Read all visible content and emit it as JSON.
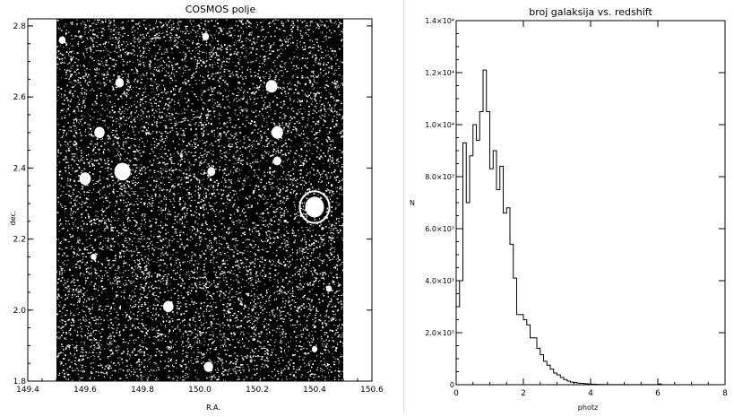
{
  "chart_data": [
    {
      "type": "scatter",
      "title": "COSMOS polje",
      "xlabel": "R.A.",
      "ylabel": "dec.",
      "xlim": [
        149.4,
        150.6
      ],
      "ylim": [
        1.8,
        2.82
      ],
      "xticks": [
        "149.4",
        "149.6",
        "149.8",
        "150.0",
        "150.2",
        "150.4",
        "150.6"
      ],
      "yticks": [
        "1.8",
        "2.0",
        "2.2",
        "2.4",
        "2.6",
        "2.8"
      ],
      "field_ra": [
        149.5,
        150.5
      ],
      "field_dec": [
        1.8,
        2.82
      ],
      "grid": false,
      "masked_regions": [
        {
          "ra": 149.52,
          "dec": 2.76,
          "r": 0.012
        },
        {
          "ra": 149.72,
          "dec": 2.64,
          "r": 0.015
        },
        {
          "ra": 149.65,
          "dec": 2.5,
          "r": 0.018
        },
        {
          "ra": 149.73,
          "dec": 2.39,
          "r": 0.028
        },
        {
          "ra": 149.6,
          "dec": 2.37,
          "r": 0.02
        },
        {
          "ra": 150.04,
          "dec": 2.39,
          "r": 0.014
        },
        {
          "ra": 150.02,
          "dec": 2.77,
          "r": 0.012
        },
        {
          "ra": 150.25,
          "dec": 2.63,
          "r": 0.02
        },
        {
          "ra": 150.27,
          "dec": 2.5,
          "r": 0.02
        },
        {
          "ra": 150.27,
          "dec": 2.42,
          "r": 0.014
        },
        {
          "ra": 150.4,
          "dec": 2.29,
          "r": 0.033
        },
        {
          "ra": 149.89,
          "dec": 2.01,
          "r": 0.018
        },
        {
          "ra": 150.03,
          "dec": 1.84,
          "r": 0.016
        },
        {
          "ra": 149.63,
          "dec": 2.15,
          "r": 0.01
        },
        {
          "ra": 150.4,
          "dec": 1.89,
          "r": 0.01
        },
        {
          "ra": 150.45,
          "dec": 2.06,
          "r": 0.01
        }
      ]
    },
    {
      "type": "line",
      "title": "broj galaksija vs. redshift",
      "xlabel": "photz",
      "ylabel": "N",
      "xlim": [
        0,
        8
      ],
      "ylim": [
        0,
        14000
      ],
      "xticks": [
        "0",
        "2",
        "4",
        "6",
        "8"
      ],
      "yticks": [
        "0",
        "2.0×10³",
        "4.0×10³",
        "6.0×10³",
        "8.0×10³",
        "1.0×10⁴",
        "1.2×10⁴",
        "1.4×10⁴"
      ],
      "grid": false,
      "series": [
        {
          "step": "histogram",
          "bin_width": 0.1,
          "x": [
            0.0,
            0.1,
            0.2,
            0.3,
            0.4,
            0.5,
            0.6,
            0.7,
            0.8,
            0.9,
            1.0,
            1.1,
            1.2,
            1.3,
            1.4,
            1.5,
            1.6,
            1.7,
            1.8,
            1.9,
            2.0,
            2.1,
            2.2,
            2.3,
            2.4,
            2.5,
            2.6,
            2.7,
            2.8,
            2.9,
            3.0,
            3.1,
            3.2,
            3.3,
            3.4,
            3.5,
            3.6,
            3.7,
            3.8,
            3.9,
            4.0,
            4.1,
            4.2,
            4.3,
            4.4,
            4.5,
            4.6,
            4.7,
            4.8,
            4.9,
            5.0,
            5.1,
            5.2,
            5.3,
            5.4,
            5.5,
            5.6,
            5.7,
            5.8,
            5.9,
            6.0,
            6.1
          ],
          "values": [
            3000,
            4000,
            9300,
            7000,
            8800,
            10000,
            9400,
            10500,
            12100,
            10500,
            8300,
            9000,
            7500,
            8400,
            6600,
            6800,
            5400,
            4100,
            2700,
            2700,
            2500,
            2300,
            1800,
            1800,
            1400,
            1150,
            900,
            750,
            600,
            450,
            380,
            280,
            200,
            140,
            100,
            80,
            60,
            50,
            40,
            30,
            20,
            15,
            10,
            8,
            5,
            5,
            5,
            5,
            5,
            5,
            5,
            5,
            5,
            5,
            5,
            5,
            5,
            5,
            5,
            5,
            30,
            5
          ]
        }
      ]
    }
  ]
}
